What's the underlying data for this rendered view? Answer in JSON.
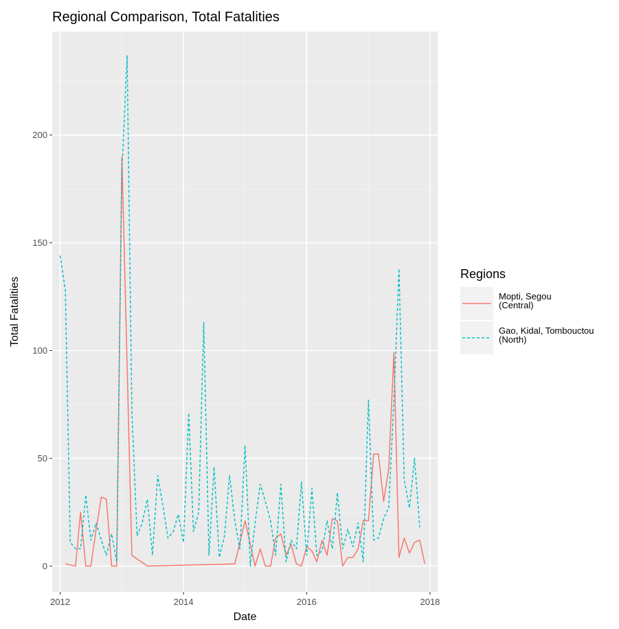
{
  "chart_data": {
    "type": "line",
    "title": "Regional Comparison, Total Fatalities",
    "xlabel": "Date",
    "ylabel": "Total Fatalities",
    "xlim": [
      "2011-11-15",
      "2018-02-15"
    ],
    "ylim": [
      -12,
      248
    ],
    "x_ticks": [
      {
        "value": "2012-01-01",
        "label": "2012"
      },
      {
        "value": "2014-01-01",
        "label": "2014"
      },
      {
        "value": "2016-01-01",
        "label": "2016"
      },
      {
        "value": "2018-01-01",
        "label": "2018"
      }
    ],
    "y_ticks": [
      {
        "value": 0,
        "label": "0"
      },
      {
        "value": 50,
        "label": "50"
      },
      {
        "value": 100,
        "label": "100"
      },
      {
        "value": 150,
        "label": "150"
      },
      {
        "value": 200,
        "label": "200"
      }
    ],
    "grid": true,
    "background": "#ebebeb",
    "legend": {
      "title": "Regions",
      "position": "right"
    },
    "series": [
      {
        "name": [
          "Mopti, Segou",
          "(Central)"
        ],
        "color": "#f8766d",
        "line_style": "solid",
        "points": [
          [
            "2012-02-01",
            1
          ],
          [
            "2012-04-01",
            0
          ],
          [
            "2012-05-01",
            25
          ],
          [
            "2012-06-01",
            0
          ],
          [
            "2012-07-01",
            0
          ],
          [
            "2012-08-01",
            17
          ],
          [
            "2012-09-01",
            32
          ],
          [
            "2012-10-01",
            31
          ],
          [
            "2012-11-01",
            0
          ],
          [
            "2012-12-01",
            0
          ],
          [
            "2013-01-01",
            190
          ],
          [
            "2013-03-01",
            5
          ],
          [
            "2013-06-01",
            0
          ],
          [
            "2014-11-01",
            1
          ],
          [
            "2015-01-01",
            21
          ],
          [
            "2015-02-01",
            10
          ],
          [
            "2015-03-01",
            0
          ],
          [
            "2015-04-01",
            8
          ],
          [
            "2015-05-01",
            0
          ],
          [
            "2015-06-01",
            0
          ],
          [
            "2015-07-01",
            13
          ],
          [
            "2015-08-01",
            15
          ],
          [
            "2015-09-01",
            5
          ],
          [
            "2015-10-01",
            10
          ],
          [
            "2015-11-01",
            1
          ],
          [
            "2015-12-01",
            0
          ],
          [
            "2016-01-01",
            9
          ],
          [
            "2016-02-01",
            7
          ],
          [
            "2016-03-01",
            2
          ],
          [
            "2016-04-01",
            12
          ],
          [
            "2016-05-01",
            5
          ],
          [
            "2016-06-01",
            22
          ],
          [
            "2016-07-01",
            21
          ],
          [
            "2016-08-01",
            0
          ],
          [
            "2016-09-01",
            4
          ],
          [
            "2016-10-01",
            4
          ],
          [
            "2016-11-01",
            8
          ],
          [
            "2016-12-01",
            21
          ],
          [
            "2017-01-01",
            21
          ],
          [
            "2017-02-01",
            52
          ],
          [
            "2017-03-01",
            52
          ],
          [
            "2017-04-01",
            30
          ],
          [
            "2017-05-01",
            45
          ],
          [
            "2017-06-01",
            99
          ],
          [
            "2017-07-01",
            4
          ],
          [
            "2017-08-01",
            13
          ],
          [
            "2017-09-01",
            6
          ],
          [
            "2017-10-01",
            11
          ],
          [
            "2017-11-01",
            12
          ],
          [
            "2017-12-01",
            1
          ]
        ]
      },
      {
        "name": [
          "Gao, Kidal, Tombouctou",
          "(North)"
        ],
        "color": "#00bfc4",
        "line_style": "dashed",
        "points": [
          [
            "2012-01-01",
            144
          ],
          [
            "2012-02-01",
            128
          ],
          [
            "2012-03-01",
            11
          ],
          [
            "2012-04-01",
            8
          ],
          [
            "2012-05-01",
            8
          ],
          [
            "2012-06-01",
            33
          ],
          [
            "2012-07-01",
            12
          ],
          [
            "2012-08-01",
            20
          ],
          [
            "2012-09-01",
            12
          ],
          [
            "2012-10-01",
            5
          ],
          [
            "2012-11-01",
            15
          ],
          [
            "2012-12-01",
            2
          ],
          [
            "2013-01-01",
            183
          ],
          [
            "2013-02-01",
            237
          ],
          [
            "2013-03-01",
            72
          ],
          [
            "2013-04-01",
            14
          ],
          [
            "2013-05-01",
            20
          ],
          [
            "2013-06-01",
            31
          ],
          [
            "2013-07-01",
            5
          ],
          [
            "2013-08-01",
            42
          ],
          [
            "2013-09-01",
            28
          ],
          [
            "2013-10-01",
            13
          ],
          [
            "2013-11-01",
            16
          ],
          [
            "2013-12-01",
            24
          ],
          [
            "2014-01-01",
            11
          ],
          [
            "2014-02-01",
            71
          ],
          [
            "2014-03-01",
            16
          ],
          [
            "2014-04-01",
            25
          ],
          [
            "2014-05-01",
            113
          ],
          [
            "2014-06-01",
            5
          ],
          [
            "2014-07-01",
            46
          ],
          [
            "2014-08-01",
            4
          ],
          [
            "2014-09-01",
            14
          ],
          [
            "2014-10-01",
            42
          ],
          [
            "2014-11-01",
            21
          ],
          [
            "2014-12-01",
            8
          ],
          [
            "2015-01-01",
            56
          ],
          [
            "2015-02-01",
            0
          ],
          [
            "2015-03-01",
            20
          ],
          [
            "2015-04-01",
            38
          ],
          [
            "2015-05-01",
            30
          ],
          [
            "2015-06-01",
            21
          ],
          [
            "2015-07-01",
            5
          ],
          [
            "2015-08-01",
            38
          ],
          [
            "2015-09-01",
            2
          ],
          [
            "2015-10-01",
            12
          ],
          [
            "2015-11-01",
            8
          ],
          [
            "2015-12-01",
            39
          ],
          [
            "2016-01-01",
            5
          ],
          [
            "2016-02-01",
            36
          ],
          [
            "2016-03-01",
            5
          ],
          [
            "2016-04-01",
            7
          ],
          [
            "2016-05-01",
            21
          ],
          [
            "2016-06-01",
            8
          ],
          [
            "2016-07-01",
            34
          ],
          [
            "2016-08-01",
            8
          ],
          [
            "2016-09-01",
            17
          ],
          [
            "2016-10-01",
            9
          ],
          [
            "2016-11-01",
            20
          ],
          [
            "2016-12-01",
            2
          ],
          [
            "2017-01-01",
            77
          ],
          [
            "2017-02-01",
            12
          ],
          [
            "2017-03-01",
            13
          ],
          [
            "2017-04-01",
            22
          ],
          [
            "2017-05-01",
            27
          ],
          [
            "2017-06-01",
            77
          ],
          [
            "2017-07-01",
            138
          ],
          [
            "2017-08-01",
            40
          ],
          [
            "2017-09-01",
            27
          ],
          [
            "2017-10-01",
            50
          ],
          [
            "2017-11-01",
            18
          ]
        ]
      }
    ]
  }
}
